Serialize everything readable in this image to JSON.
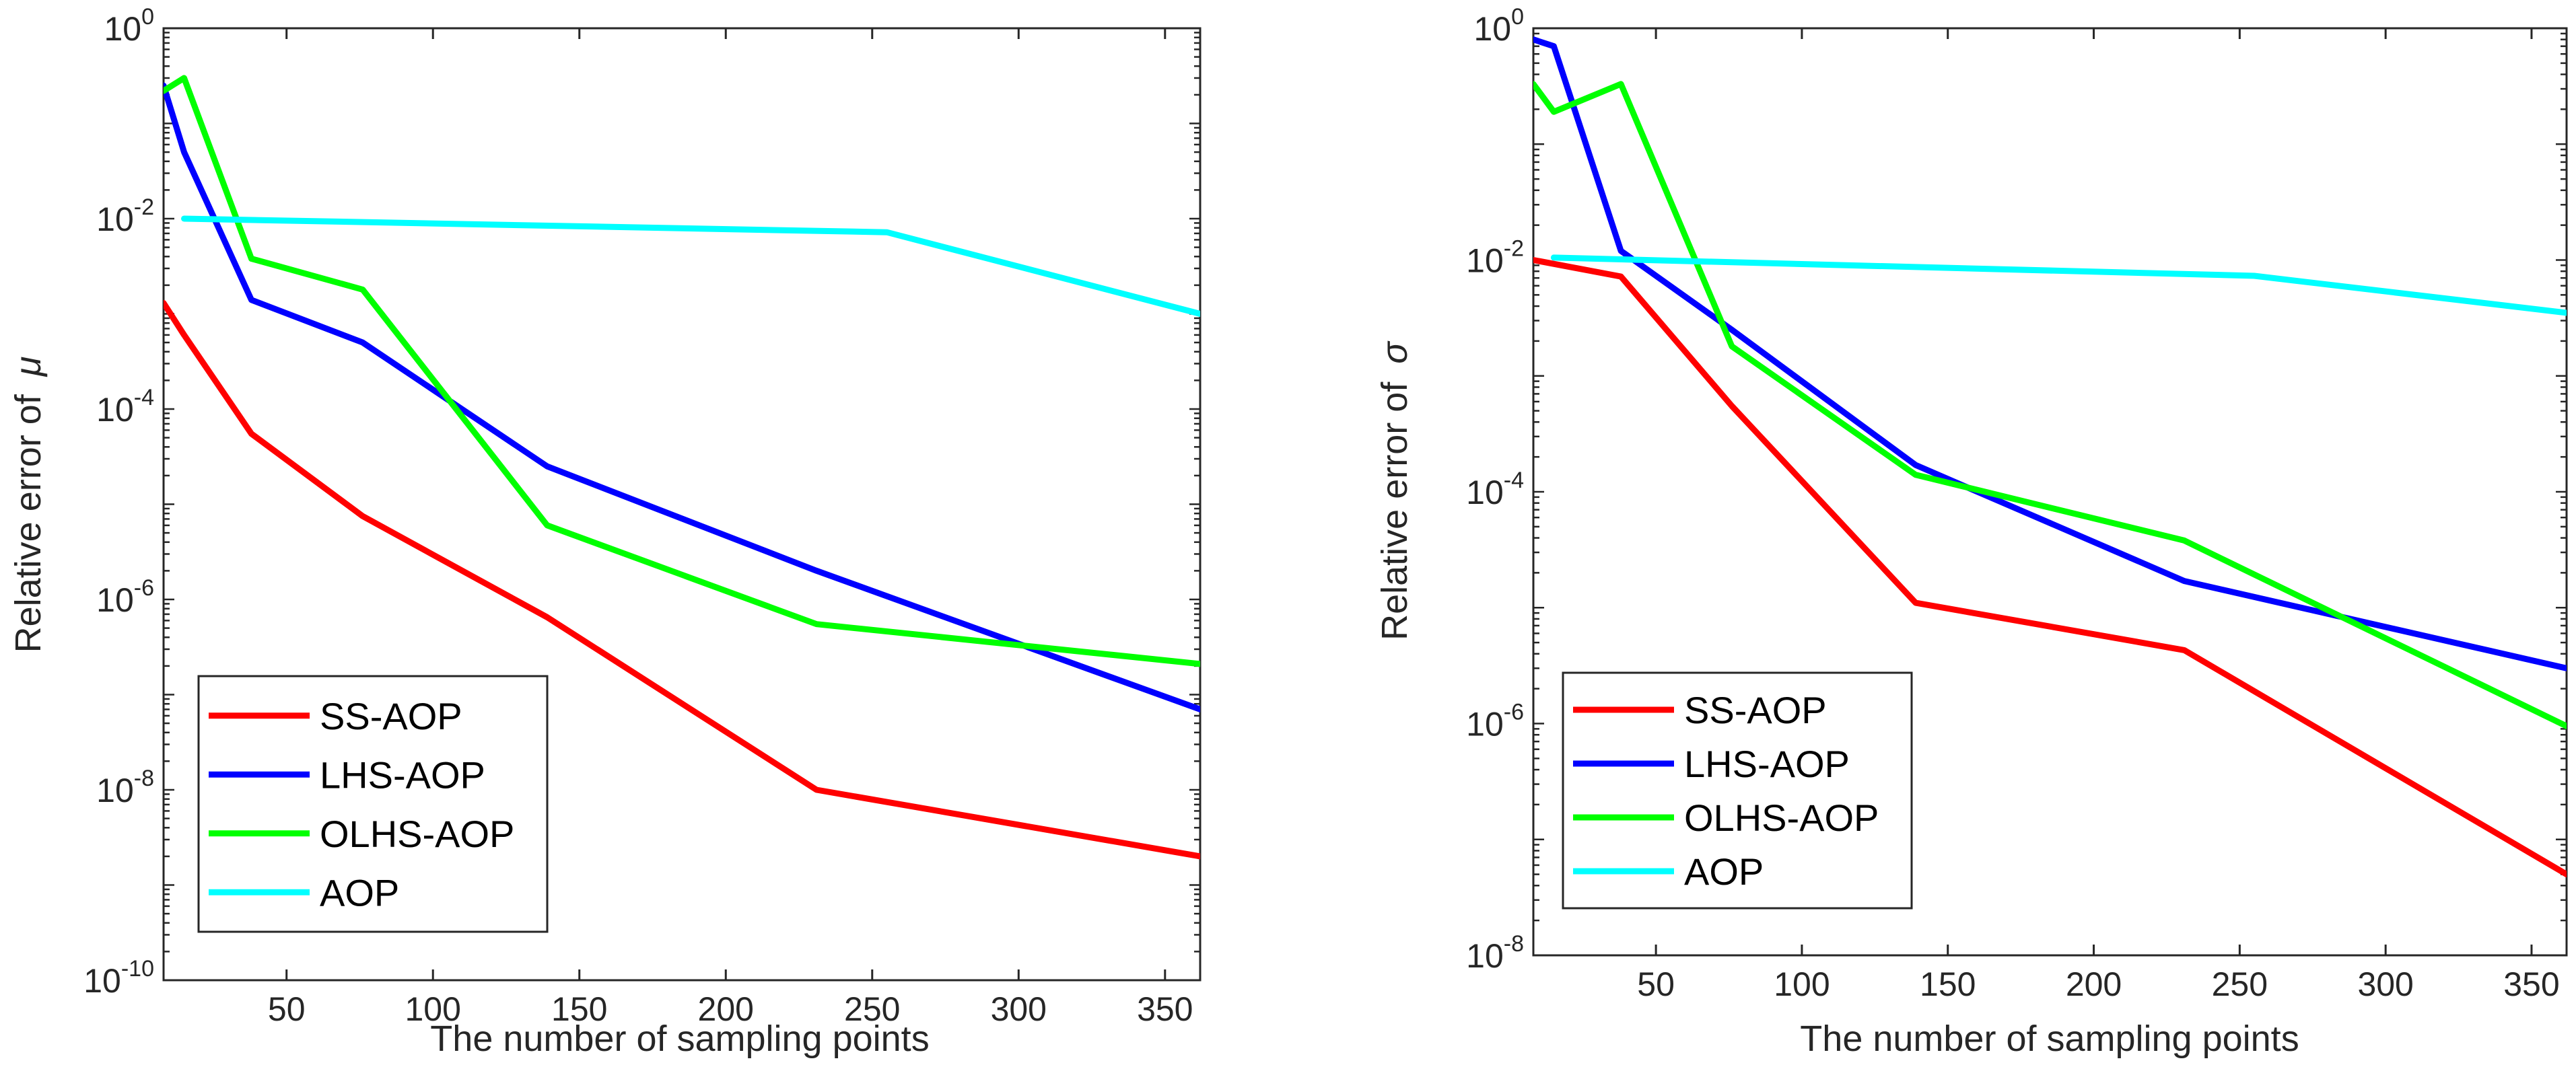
{
  "chart_data": [
    {
      "type": "line",
      "yscale": "log",
      "title": "",
      "xlabel": "The number of sampling points",
      "ylabel": "Relative error of",
      "ylabel_symbol": "μ",
      "xlim": [
        8,
        362
      ],
      "ylim": [
        1e-10,
        1
      ],
      "xticks": [
        50,
        100,
        150,
        200,
        250,
        300,
        350
      ],
      "yticks": [
        {
          "base": "10",
          "exp": "0",
          "value": 1
        },
        {
          "base": "10",
          "exp": "-2",
          "value": 0.01
        },
        {
          "base": "10",
          "exp": "-4",
          "value": 0.0001
        },
        {
          "base": "10",
          "exp": "-6",
          "value": 1e-06
        },
        {
          "base": "10",
          "exp": "-8",
          "value": 1e-08
        },
        {
          "base": "10",
          "exp": "-10",
          "value": 1e-10
        }
      ],
      "legend_position": "bottom-left",
      "series": [
        {
          "name": "SS-AOP",
          "color": "#ff0000",
          "x": [
            8,
            15,
            38,
            76,
            139,
            231,
            362
          ],
          "y": [
            0.0013,
            0.0006,
            5.5e-05,
            7.5e-06,
            6.5e-07,
            1e-08,
            2e-09
          ]
        },
        {
          "name": "LHS-AOP",
          "color": "#0000ff",
          "x": [
            8,
            15,
            38,
            76,
            139,
            231,
            362
          ],
          "y": [
            0.25,
            0.05,
            0.0014,
            0.0005,
            2.5e-05,
            2e-06,
            7e-08
          ]
        },
        {
          "name": "OLHS-AOP",
          "color": "#00ff00",
          "x": [
            8,
            15,
            38,
            76,
            139,
            231,
            362
          ],
          "y": [
            0.22,
            0.3,
            0.0038,
            0.0018,
            6e-06,
            5.5e-07,
            2.1e-07
          ]
        },
        {
          "name": "AOP",
          "color": "#00ffff",
          "x": [
            15,
            255,
            362
          ],
          "y": [
            0.01,
            0.0072,
            0.001
          ]
        }
      ]
    },
    {
      "type": "line",
      "yscale": "log",
      "title": "",
      "xlabel": "The number of sampling points",
      "ylabel": "Relative error of",
      "ylabel_symbol": "σ",
      "xlim": [
        8,
        362
      ],
      "ylim": [
        1e-08,
        1
      ],
      "xticks": [
        50,
        100,
        150,
        200,
        250,
        300,
        350
      ],
      "yticks": [
        {
          "base": "10",
          "exp": "0",
          "value": 1
        },
        {
          "base": "10",
          "exp": "-2",
          "value": 0.01
        },
        {
          "base": "10",
          "exp": "-4",
          "value": 0.0001
        },
        {
          "base": "10",
          "exp": "-6",
          "value": 1e-06
        },
        {
          "base": "10",
          "exp": "-8",
          "value": 1e-08
        }
      ],
      "legend_position": "bottom-left",
      "series": [
        {
          "name": "SS-AOP",
          "color": "#ff0000",
          "x": [
            8,
            38,
            76,
            139,
            231,
            362
          ],
          "y": [
            0.01,
            0.0072,
            0.00055,
            1.1e-05,
            4.3e-06,
            5e-08
          ]
        },
        {
          "name": "LHS-AOP",
          "color": "#0000ff",
          "x": [
            8,
            15,
            38,
            76,
            139,
            231,
            362
          ],
          "y": [
            0.8,
            0.7,
            0.012,
            0.0025,
            0.00017,
            1.7e-05,
            3e-06
          ]
        },
        {
          "name": "OLHS-AOP",
          "color": "#00ff00",
          "x": [
            8,
            15,
            38,
            76,
            139,
            231,
            362
          ],
          "y": [
            0.33,
            0.19,
            0.33,
            0.0018,
            0.00014,
            3.8e-05,
            9.5e-07
          ]
        },
        {
          "name": "AOP",
          "color": "#00ffff",
          "x": [
            15,
            255,
            362
          ],
          "y": [
            0.0105,
            0.0073,
            0.0035
          ]
        }
      ]
    }
  ]
}
